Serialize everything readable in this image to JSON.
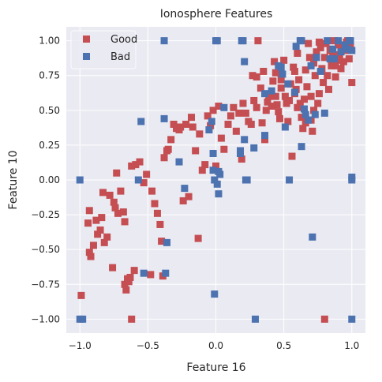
{
  "chart_data": {
    "type": "scatter",
    "title": "Ionosphere Features",
    "xlabel": "Feature 16",
    "ylabel": "Feature 10",
    "xlim": [
      -1.1,
      1.1
    ],
    "ylim": [
      -1.1,
      1.1
    ],
    "xticks": [
      -1.0,
      -0.5,
      0.0,
      0.5,
      1.0
    ],
    "xtick_labels": [
      "−1.0",
      "−0.5",
      "0.0",
      "0.5",
      "1.0"
    ],
    "yticks": [
      -1.0,
      -0.75,
      -0.5,
      -0.25,
      0.0,
      0.25,
      0.5,
      0.75,
      1.0
    ],
    "ytick_labels": [
      "−1.00",
      "−0.75",
      "−0.50",
      "−0.25",
      "0.00",
      "0.25",
      "0.50",
      "0.75",
      "1.00"
    ],
    "grid": true,
    "legend_position": "top-left",
    "background": "#EAEAF2",
    "series": [
      {
        "name": "Good",
        "color": "#C44E52",
        "marker": "square",
        "points": [
          [
            -0.99,
            -0.83
          ],
          [
            -0.94,
            -0.31
          ],
          [
            -0.93,
            -0.22
          ],
          [
            -0.93,
            -0.52
          ],
          [
            -0.92,
            -0.55
          ],
          [
            -0.9,
            -0.47
          ],
          [
            -0.88,
            -0.29
          ],
          [
            -0.87,
            -0.39
          ],
          [
            -0.85,
            -0.36
          ],
          [
            -0.84,
            -0.27
          ],
          [
            -0.83,
            -0.09
          ],
          [
            -0.82,
            -0.45
          ],
          [
            -0.8,
            -0.41
          ],
          [
            -0.78,
            -0.11
          ],
          [
            -0.76,
            -0.63
          ],
          [
            -0.75,
            -0.16
          ],
          [
            -0.74,
            -0.2
          ],
          [
            -0.73,
            0.05
          ],
          [
            -0.72,
            -0.24
          ],
          [
            -0.7,
            -0.08
          ],
          [
            -0.68,
            -0.23
          ],
          [
            -0.67,
            -0.3
          ],
          [
            -0.67,
            -0.75
          ],
          [
            -0.66,
            -0.79
          ],
          [
            -0.65,
            -0.71
          ],
          [
            -0.64,
            -0.73
          ],
          [
            -0.63,
            -0.7
          ],
          [
            -0.62,
            0.1
          ],
          [
            -0.6,
            -0.65
          ],
          [
            -0.59,
            0.11
          ],
          [
            -0.56,
            0.13
          ],
          [
            -0.53,
            -0.02
          ],
          [
            -0.51,
            0.04
          ],
          [
            -0.48,
            -0.68
          ],
          [
            -0.47,
            -0.08
          ],
          [
            -0.45,
            -0.17
          ],
          [
            -0.43,
            -0.24
          ],
          [
            -0.41,
            -0.32
          ],
          [
            -0.4,
            -0.44
          ],
          [
            -0.39,
            -0.69
          ],
          [
            -0.38,
            0.16
          ],
          [
            -0.36,
            0.21
          ],
          [
            -0.35,
            0.22
          ],
          [
            -0.33,
            0.29
          ],
          [
            -0.31,
            0.4
          ],
          [
            -0.29,
            0.37
          ],
          [
            -0.27,
            0.36
          ],
          [
            -0.26,
            0.38
          ],
          [
            -0.24,
            -0.15
          ],
          [
            -0.22,
            0.4
          ],
          [
            -0.2,
            -0.12
          ],
          [
            -0.18,
            0.45
          ],
          [
            -0.17,
            0.38
          ],
          [
            -0.15,
            0.21
          ],
          [
            -0.13,
            -0.42
          ],
          [
            -0.12,
            0.33
          ],
          [
            -0.1,
            0.07
          ],
          [
            -0.08,
            0.11
          ],
          [
            -0.06,
            0.46
          ],
          [
            -0.04,
            0.39
          ],
          [
            -0.02,
            0.5
          ],
          [
            0.0,
            0.1
          ],
          [
            0.02,
            0.53
          ],
          [
            0.04,
            0.3
          ],
          [
            0.06,
            0.22
          ],
          [
            0.09,
            0.4
          ],
          [
            0.11,
            0.46
          ],
          [
            0.13,
            0.52
          ],
          [
            0.15,
            0.35
          ],
          [
            0.17,
            0.48
          ],
          [
            0.19,
            0.15
          ],
          [
            0.2,
            0.55
          ],
          [
            0.22,
            0.48
          ],
          [
            0.24,
            0.42
          ],
          [
            0.26,
            0.4
          ],
          [
            0.27,
            0.75
          ],
          [
            0.28,
            0.57
          ],
          [
            0.3,
            0.52
          ],
          [
            0.31,
            1.0
          ],
          [
            0.33,
            0.66
          ],
          [
            0.34,
            0.41
          ],
          [
            0.35,
            0.78
          ],
          [
            0.36,
            0.29
          ],
          [
            0.37,
            0.5
          ],
          [
            0.38,
            0.56
          ],
          [
            0.39,
            0.6
          ],
          [
            0.41,
            0.53
          ],
          [
            0.42,
            0.71
          ],
          [
            0.43,
            0.85
          ],
          [
            0.44,
            0.6
          ],
          [
            0.45,
            0.54
          ],
          [
            0.46,
            0.49
          ],
          [
            0.47,
            0.44
          ],
          [
            0.48,
            0.66
          ],
          [
            0.5,
            0.86
          ],
          [
            0.51,
            0.6
          ],
          [
            0.52,
            0.55
          ],
          [
            0.53,
            0.42
          ],
          [
            0.54,
            0.57
          ],
          [
            0.55,
            0.69
          ],
          [
            0.56,
            0.17
          ],
          [
            0.57,
            0.81
          ],
          [
            0.58,
            0.78
          ],
          [
            0.59,
            0.65
          ],
          [
            0.6,
            0.91
          ],
          [
            0.61,
            0.72
          ],
          [
            0.62,
            0.55
          ],
          [
            0.63,
            0.45
          ],
          [
            0.64,
            0.37
          ],
          [
            0.65,
            0.58
          ],
          [
            0.66,
            0.79
          ],
          [
            0.67,
            0.67
          ],
          [
            0.68,
            0.98
          ],
          [
            0.69,
            0.88
          ],
          [
            0.7,
            0.6
          ],
          [
            0.71,
            0.35
          ],
          [
            0.72,
            0.84
          ],
          [
            0.73,
            0.75
          ],
          [
            0.74,
            0.92
          ],
          [
            0.75,
            0.55
          ],
          [
            0.76,
            0.62
          ],
          [
            0.77,
            0.95
          ],
          [
            0.78,
            0.8
          ],
          [
            0.79,
            0.7
          ],
          [
            0.8,
            0.88
          ],
          [
            0.81,
            0.98
          ],
          [
            0.82,
            0.75
          ],
          [
            0.83,
            0.65
          ],
          [
            0.84,
            0.93
          ],
          [
            0.85,
            0.82
          ],
          [
            0.86,
            0.9
          ],
          [
            0.87,
            1.0
          ],
          [
            0.88,
            0.74
          ],
          [
            0.89,
            0.86
          ],
          [
            0.9,
            0.97
          ],
          [
            0.91,
            0.9
          ],
          [
            0.92,
            0.8
          ],
          [
            0.93,
            0.96
          ],
          [
            0.94,
            0.85
          ],
          [
            0.95,
            0.93
          ],
          [
            0.96,
            0.99
          ],
          [
            0.97,
            1.0
          ],
          [
            0.98,
            0.87
          ],
          [
            0.99,
            0.95
          ],
          [
            1.0,
            0.7
          ],
          [
            0.7,
            0.43
          ],
          [
            0.72,
            0.5
          ],
          [
            0.66,
            0.41
          ],
          [
            0.6,
            0.52
          ],
          [
            0.58,
            0.62
          ],
          [
            0.48,
            0.72
          ],
          [
            0.3,
            0.74
          ],
          [
            0.44,
            0.77
          ],
          [
            0.88,
            0.82
          ],
          [
            0.76,
            0.99
          ],
          [
            0.8,
            -1.0
          ],
          [
            -0.62,
            -1.0
          ]
        ]
      },
      {
        "name": "Bad",
        "color": "#4C72B0",
        "marker": "square",
        "points": [
          [
            -1.0,
            0.0
          ],
          [
            -1.0,
            -1.0
          ],
          [
            -0.98,
            -1.0
          ],
          [
            -0.57,
            0.0
          ],
          [
            -0.55,
            0.42
          ],
          [
            -0.53,
            -0.67
          ],
          [
            -0.38,
            1.0
          ],
          [
            -0.38,
            0.44
          ],
          [
            -0.37,
            -0.67
          ],
          [
            -0.36,
            -0.45
          ],
          [
            -0.27,
            0.13
          ],
          [
            -0.23,
            -0.06
          ],
          [
            -0.05,
            0.36
          ],
          [
            -0.03,
            0.42
          ],
          [
            -0.02,
            0.19
          ],
          [
            -0.02,
            0.07
          ],
          [
            -0.01,
            0.0
          ],
          [
            -0.01,
            -0.82
          ],
          [
            0.0,
            1.0
          ],
          [
            0.01,
            1.0
          ],
          [
            0.01,
            -0.03
          ],
          [
            0.02,
            -0.1
          ],
          [
            0.02,
            0.06
          ],
          [
            0.03,
            0.04
          ],
          [
            0.06,
            0.52
          ],
          [
            0.18,
            0.19
          ],
          [
            0.18,
            0.21
          ],
          [
            0.19,
            1.0
          ],
          [
            0.2,
            1.0
          ],
          [
            0.21,
            0.85
          ],
          [
            0.21,
            0.29
          ],
          [
            0.22,
            0.0
          ],
          [
            0.23,
            0.0
          ],
          [
            0.28,
            0.23
          ],
          [
            0.29,
            -1.0
          ],
          [
            0.36,
            0.62
          ],
          [
            0.36,
            0.32
          ],
          [
            0.41,
            0.64
          ],
          [
            0.46,
            0.82
          ],
          [
            0.48,
            0.81
          ],
          [
            0.49,
            0.76
          ],
          [
            0.51,
            0.38
          ],
          [
            0.53,
            0.69
          ],
          [
            0.54,
            0.0
          ],
          [
            0.58,
            0.63
          ],
          [
            0.62,
            1.0
          ],
          [
            0.63,
            1.0
          ],
          [
            0.63,
            0.24
          ],
          [
            0.65,
            0.51
          ],
          [
            0.66,
            0.47
          ],
          [
            0.68,
            0.43
          ],
          [
            0.7,
            0.82
          ],
          [
            0.71,
            -0.41
          ],
          [
            0.73,
            0.47
          ],
          [
            0.74,
            0.88
          ],
          [
            0.77,
            0.78
          ],
          [
            0.8,
            0.48
          ],
          [
            0.82,
            1.0
          ],
          [
            0.84,
            0.87
          ],
          [
            0.86,
            0.94
          ],
          [
            0.87,
            0.87
          ],
          [
            0.9,
            1.0
          ],
          [
            0.92,
            0.92
          ],
          [
            0.95,
            0.97
          ],
          [
            0.97,
            0.94
          ],
          [
            0.98,
            1.0
          ],
          [
            0.99,
            1.0
          ],
          [
            1.0,
            0.93
          ],
          [
            1.0,
            0.02
          ],
          [
            1.0,
            0.0
          ],
          [
            1.0,
            -1.0
          ],
          [
            0.59,
            0.96
          ]
        ]
      }
    ]
  }
}
